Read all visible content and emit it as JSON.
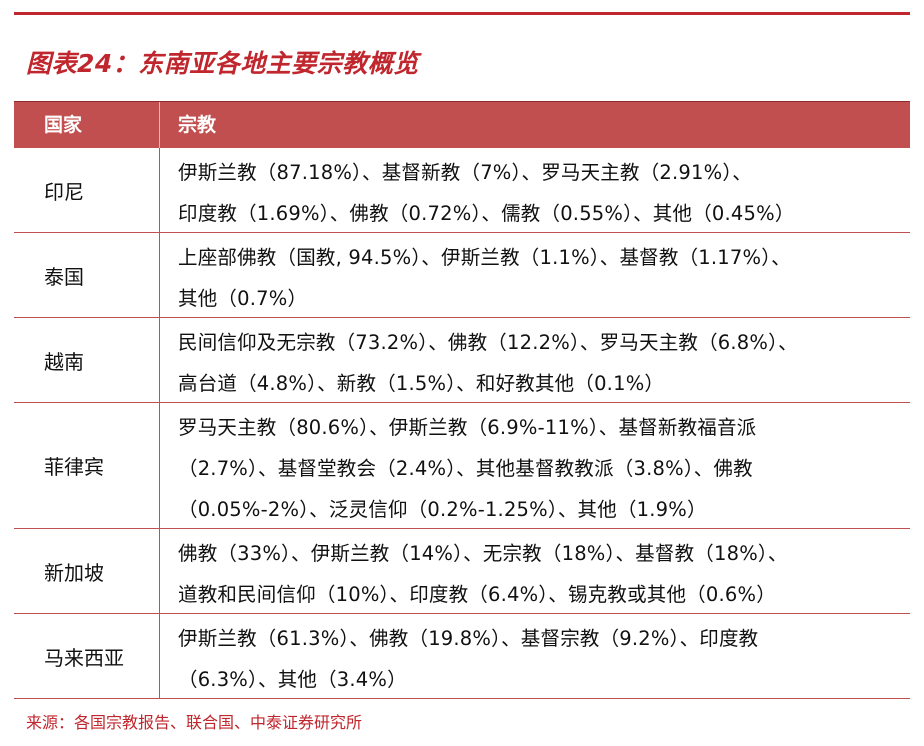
{
  "title": "图表24：东南亚各地主要宗教概览",
  "table": {
    "headers": [
      "国家",
      "宗教"
    ],
    "rows": [
      {
        "country": "印尼",
        "lines": [
          "伊斯兰教（87.18%）、基督新教（7%）、罗马天主教（2.91%）、",
          "印度教（1.69%）、佛教（0.72%）、儒教（0.55%）、其他（0.45%）"
        ]
      },
      {
        "country": "泰国",
        "lines": [
          "上座部佛教（国教, 94.5%）、伊斯兰教（1.1%）、基督教（1.17%）、",
          "其他（0.7%）"
        ]
      },
      {
        "country": "越南",
        "lines": [
          "民间信仰及无宗教（73.2%）、佛教（12.2%）、罗马天主教（6.8%）、",
          "高台道（4.8%）、新教（1.5%）、和好教其他（0.1%）"
        ]
      },
      {
        "country": "菲律宾",
        "lines": [
          "罗马天主教（80.6%）、伊斯兰教（6.9%-11%）、基督新教福音派",
          "（2.7%）、基督堂教会（2.4%）、其他基督教教派（3.8%）、佛教",
          "（0.05%-2%）、泛灵信仰（0.2%-1.25%）、其他（1.9%）"
        ]
      },
      {
        "country": "新加坡",
        "lines": [
          "佛教（33%）、伊斯兰教（14%）、无宗教（18%）、基督教（18%）、",
          "道教和民间信仰（10%）、印度教（6.4%）、锡克教或其他（0.6%）"
        ]
      },
      {
        "country": "马来西亚",
        "lines": [
          "伊斯兰教（61.3%）、佛教（19.8%）、基督宗教（9.2%）、印度教",
          "（6.3%）、其他（3.4%）"
        ]
      }
    ]
  },
  "source": "来源：各国宗教报告、联合国、中泰证券研究所",
  "colors": {
    "accent": "#c0262d",
    "header_bg": "#c14f4f"
  }
}
